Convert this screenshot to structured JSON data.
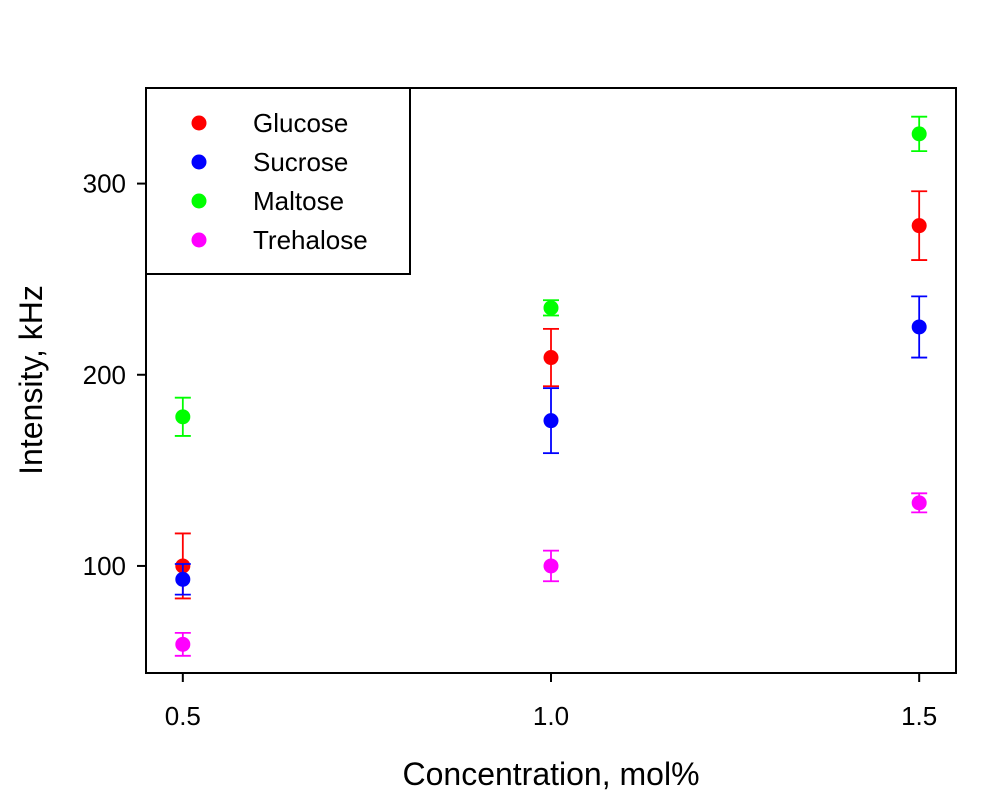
{
  "chart_data": {
    "type": "scatter",
    "title": "",
    "xlabel": "Concentration, mol%",
    "ylabel": "Intensity, kHz",
    "xlim": [
      0.45,
      1.55
    ],
    "ylim": [
      44,
      350
    ],
    "x_ticks": [
      0.5,
      1.0,
      1.5
    ],
    "x_tick_labels": [
      "0.5",
      "1.0",
      "1.5"
    ],
    "y_ticks": [
      100,
      200,
      300
    ],
    "y_tick_labels": [
      "100",
      "200",
      "300"
    ],
    "grid": false,
    "legend_position": "top-left",
    "series": [
      {
        "name": "Glucose",
        "color": "#ff0000",
        "points": [
          {
            "x": 0.5,
            "y": 100,
            "err": 17
          },
          {
            "x": 1.0,
            "y": 209,
            "err": 15
          },
          {
            "x": 1.5,
            "y": 278,
            "err": 18
          }
        ]
      },
      {
        "name": "Sucrose",
        "color": "#0000ff",
        "points": [
          {
            "x": 0.5,
            "y": 93,
            "err": 8
          },
          {
            "x": 1.0,
            "y": 176,
            "err": 17
          },
          {
            "x": 1.5,
            "y": 225,
            "err": 16
          }
        ]
      },
      {
        "name": "Maltose",
        "color": "#00ff00",
        "points": [
          {
            "x": 0.5,
            "y": 178,
            "err": 10
          },
          {
            "x": 1.0,
            "y": 235,
            "err": 4
          },
          {
            "x": 1.5,
            "y": 326,
            "err": 9
          }
        ]
      },
      {
        "name": "Trehalose",
        "color": "#ff00ff",
        "points": [
          {
            "x": 0.5,
            "y": 59,
            "err": 6
          },
          {
            "x": 1.0,
            "y": 100,
            "err": 8
          },
          {
            "x": 1.5,
            "y": 133,
            "err": 5
          }
        ]
      }
    ]
  }
}
